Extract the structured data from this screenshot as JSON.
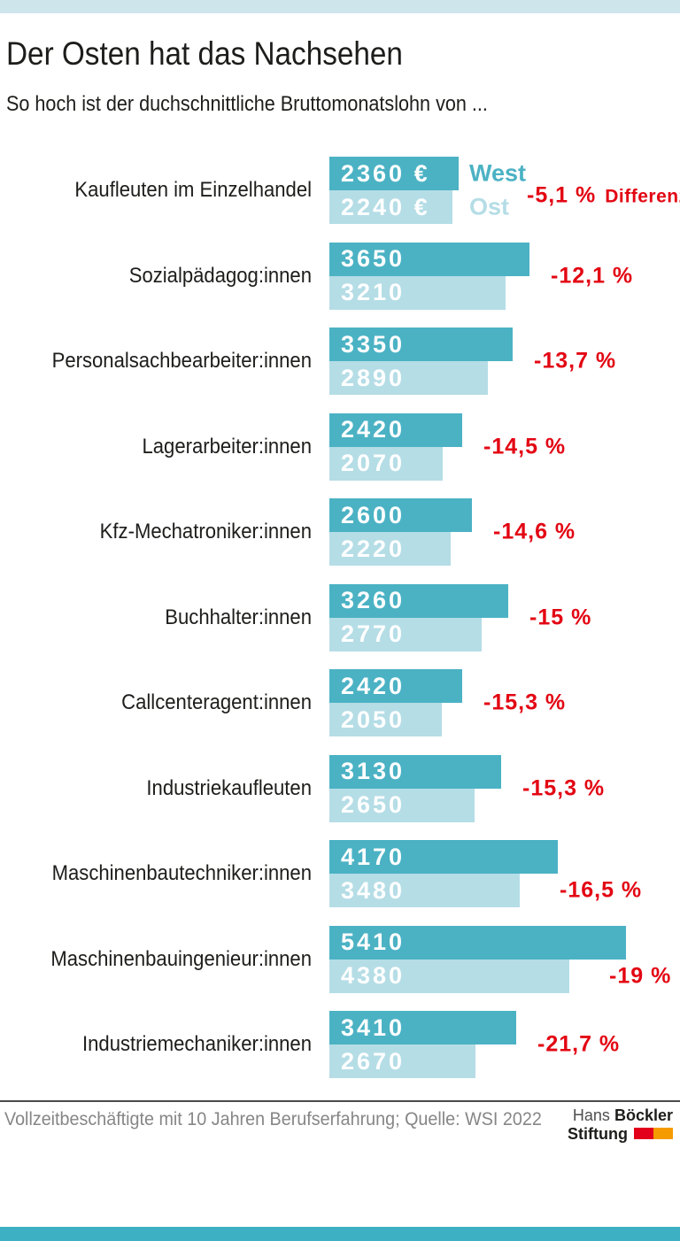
{
  "page": {
    "title": "Der Osten hat das Nachsehen",
    "subtitle": "So hoch ist der duchschnittliche Bruttomonatslohn von ...",
    "footer_note": "Vollzeitbeschäftigte mit 10 Jahren Berufserfahrung; Quelle: WSI 2022",
    "logo": {
      "name_light": "Hans",
      "name_bold": "Böckler",
      "line2": "Stiftung"
    }
  },
  "colors": {
    "accent_top_bar": "#cfe5ec",
    "accent_bottom_bar": "#3db1c3",
    "west_bar": "#4bb2c4",
    "ost_bar": "#b5dde6",
    "diff_red": "#e30613",
    "text_dark": "#1d1d1b",
    "footer_gray": "#868686",
    "logo_red": "#e2001a",
    "logo_orange": "#f59b00"
  },
  "chart_data": {
    "type": "bar",
    "orientation": "horizontal",
    "unit": "€",
    "x_max": 5410,
    "grid": false,
    "legend_position": "right-of-first-row-bars",
    "legend": [
      {
        "name": "West",
        "color": "#4bb2c4"
      },
      {
        "name": "Ost",
        "color": "#b5dde6"
      }
    ],
    "diff_header_label": "Differenz",
    "categories": [
      "Kaufleuten im Einzelhandel",
      "Sozialpädagog:innen",
      "Personalsachbearbeiter:innen",
      "Lagerarbeiter:innen",
      "Kfz-Mechatroniker:innen",
      "Buchhalter:innen",
      "Callcenteragent:innen",
      "Industriekaufleuten",
      "Maschinenbautechniker:innen",
      "Maschinenbauingenieur:innen",
      "Industriemechaniker:innen"
    ],
    "series": [
      {
        "name": "West",
        "values": [
          2360,
          3650,
          3350,
          2420,
          2600,
          3260,
          2420,
          3130,
          4170,
          5410,
          3410
        ]
      },
      {
        "name": "Ost",
        "values": [
          2240,
          3210,
          2890,
          2070,
          2220,
          2770,
          2050,
          2650,
          3480,
          4380,
          2670
        ]
      }
    ],
    "bar_value_labels": [
      [
        "2360 €",
        "2240 €"
      ],
      [
        "3650",
        "3210"
      ],
      [
        "3350",
        "2890"
      ],
      [
        "2420",
        "2070"
      ],
      [
        "2600",
        "2220"
      ],
      [
        "3260",
        "2770"
      ],
      [
        "2420",
        "2050"
      ],
      [
        "3130",
        "2650"
      ],
      [
        "4170",
        "3480"
      ],
      [
        "5410",
        "4380"
      ],
      [
        "3410",
        "2670"
      ]
    ],
    "diff_labels": [
      "-5,1 %",
      "-12,1 %",
      "-13,7 %",
      "-14,5 %",
      "-14,6 %",
      "-15 %",
      "-15,3 %",
      "-15,3 %",
      "-16,5 %",
      "-19 %",
      "-21,7 %"
    ],
    "diff_at_ost_level_indices": [
      8,
      9
    ]
  }
}
